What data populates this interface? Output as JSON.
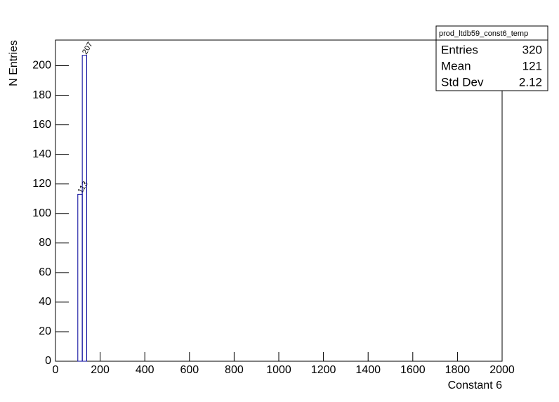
{
  "chart_data": {
    "type": "histogram",
    "x_label": "Constant 6",
    "y_label": "N Entries",
    "bins": [
      100,
      120,
      140
    ],
    "values": [
      113,
      207
    ],
    "color": "#000099",
    "xlim": [
      0,
      2000
    ],
    "xticks": [
      0,
      200,
      400,
      600,
      800,
      1000,
      1200,
      1400,
      1600,
      1800,
      2000
    ],
    "ylim": [
      0,
      217.35
    ],
    "yticks": [
      0,
      20,
      40,
      60,
      80,
      100,
      120,
      140,
      160,
      180,
      200
    ],
    "stats": {
      "title": "prod_ltdb59_const6_temp",
      "rows": [
        [
          "Entries",
          320
        ],
        [
          "Mean",
          121
        ],
        [
          "Std Dev",
          2.12
        ]
      ]
    }
  }
}
